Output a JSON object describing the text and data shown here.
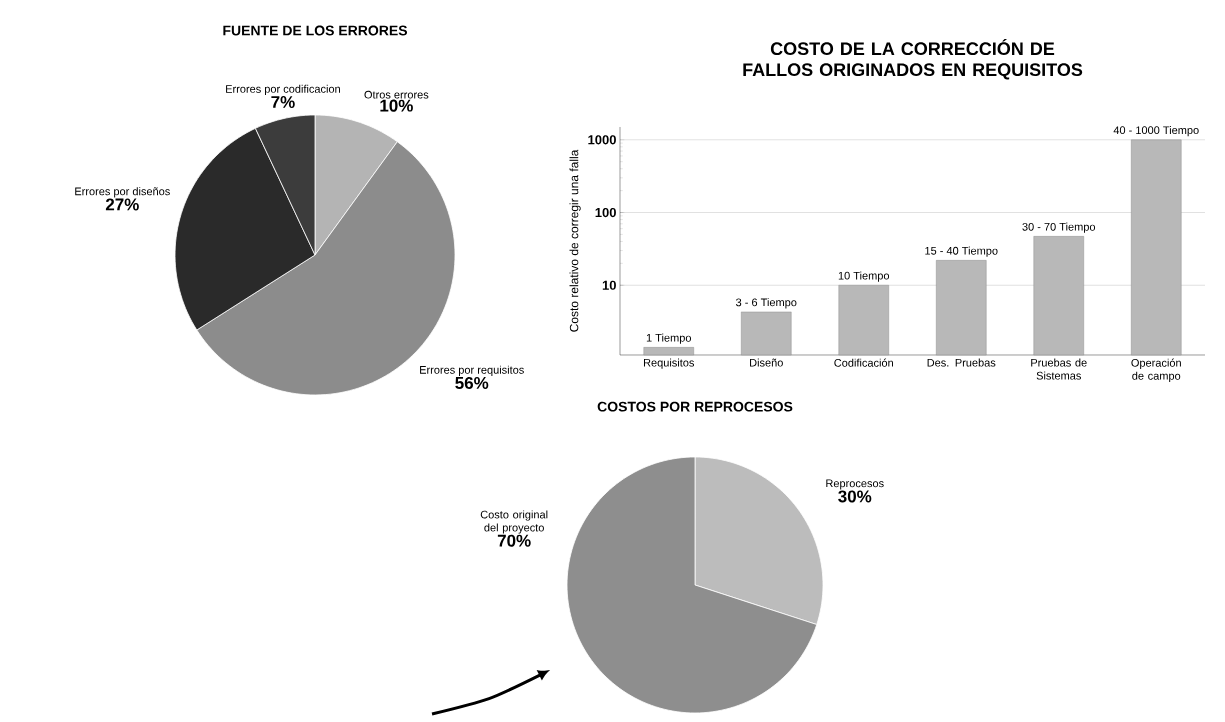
{
  "chart_data": [
    {
      "type": "pie",
      "title": "FUENTE DE LOS ERRORES",
      "categories": [
        "Otros errores",
        "Errores por requisitos",
        "Errores por diseños",
        "Errores por codificacion"
      ],
      "values": [
        10,
        56,
        27,
        7
      ],
      "colors": [
        "#b4b4b4",
        "#8c8c8c",
        "#2a2a2a",
        "#3c3c3c"
      ],
      "value_labels": [
        "10%",
        "56%",
        "27%",
        "7%"
      ]
    },
    {
      "type": "bar",
      "title": "COSTO DE LA CORRECCIÓN DE FALLOS ORIGINADOS EN REQUISITOS",
      "ylabel": "Costo relativo de corregir una falla",
      "categories": [
        "Requisitos",
        "Diseño",
        "Codificación",
        "Des. Pruebas",
        "Pruebas de Sistemas",
        "Operación de campo"
      ],
      "values": [
        1.4,
        4.3,
        10,
        22,
        47,
        1000
      ],
      "color": "#b8b8b8",
      "annotations": [
        {
          "text": "1 Tiempo",
          "x": "Requisitos",
          "y": 1.4
        },
        {
          "text": "3 - 6 Tiempo",
          "x": "Diseño",
          "y": 4.3
        },
        {
          "text": "10 Tiempo",
          "x": "Codificación",
          "y": 10
        },
        {
          "text": "15 - 40 Tiempo",
          "x": "Des. Pruebas",
          "y": 22
        },
        {
          "text": "30 - 70 Tiempo",
          "x": "Pruebas de Sistemas",
          "y": 47
        },
        {
          "text": "40 - 1000 Tiempo",
          "x": "Operación de campo",
          "y": 1000
        }
      ],
      "log": "y",
      "ylim": [
        1.1,
        1500
      ],
      "yticks": [
        10,
        100,
        1000
      ],
      "grid": "y"
    },
    {
      "type": "pie",
      "title": "COSTOS POR REPROCESOS",
      "categories": [
        "Reprocesos",
        "Costo original del proyecto"
      ],
      "values": [
        30,
        70
      ],
      "colors": [
        "#bcbcbc",
        "#8e8e8e"
      ],
      "value_labels": [
        "30%",
        "70%"
      ]
    }
  ]
}
